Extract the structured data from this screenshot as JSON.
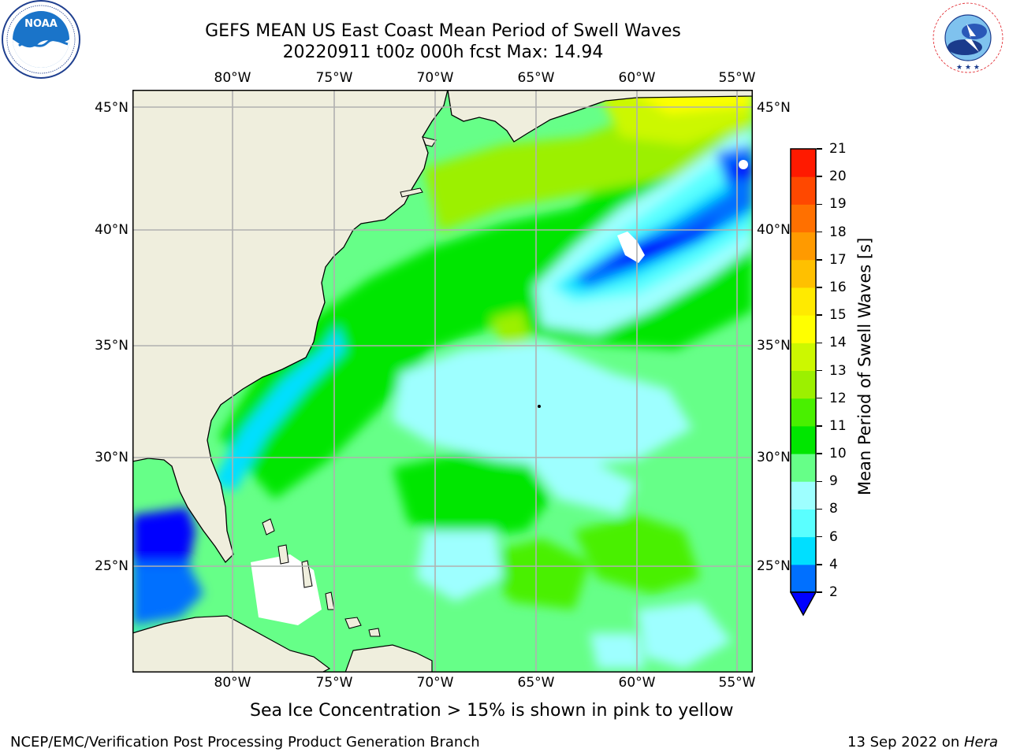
{
  "header": {
    "title_line1": "GEFS MEAN US East Coast Mean Period of Swell Waves",
    "title_line2": "20220911 t00z 000h fcst   Max: 14.94"
  },
  "logos": {
    "left_text": "NOAA",
    "left_ring_text": "NATIONAL OCEANIC AND ATMOSPHERIC ADMINISTRATION · U.S. DEPARTMENT OF COMMERCE",
    "right_ring_text": "NATIONAL WEATHER SERVICE"
  },
  "map": {
    "lon_labels": [
      "80°W",
      "75°W",
      "70°W",
      "65°W",
      "60°W",
      "55°W"
    ],
    "lat_labels": [
      "45°N",
      "40°N",
      "35°N",
      "30°N",
      "25°N"
    ],
    "colors": {
      "land": "#efeedd",
      "grid": "#b0b0b0",
      "coast": "#000000"
    }
  },
  "colorbar": {
    "title": "Mean Period of Swell Waves [s]",
    "levels": [
      "2",
      "4",
      "6",
      "8",
      "9",
      "10",
      "11",
      "12",
      "13",
      "14",
      "15",
      "16",
      "17",
      "18",
      "19",
      "20",
      "21"
    ],
    "colors": [
      "#0070ff",
      "#00dfff",
      "#5affff",
      "#9effff",
      "#66ff88",
      "#00e600",
      "#49f000",
      "#9cf000",
      "#ccf800",
      "#ffff00",
      "#ffea00",
      "#ffc000",
      "#ff9a00",
      "#ff7000",
      "#ff4800",
      "#ff1a00"
    ],
    "under_color": "#0000ff"
  },
  "note": "Sea Ice Concentration > 15% is shown in pink to yellow",
  "footer": {
    "left": "NCEP/EMC/Verification Post Processing Product Generation Branch",
    "date": "13 Sep 2022 on ",
    "machine": "Hera"
  }
}
